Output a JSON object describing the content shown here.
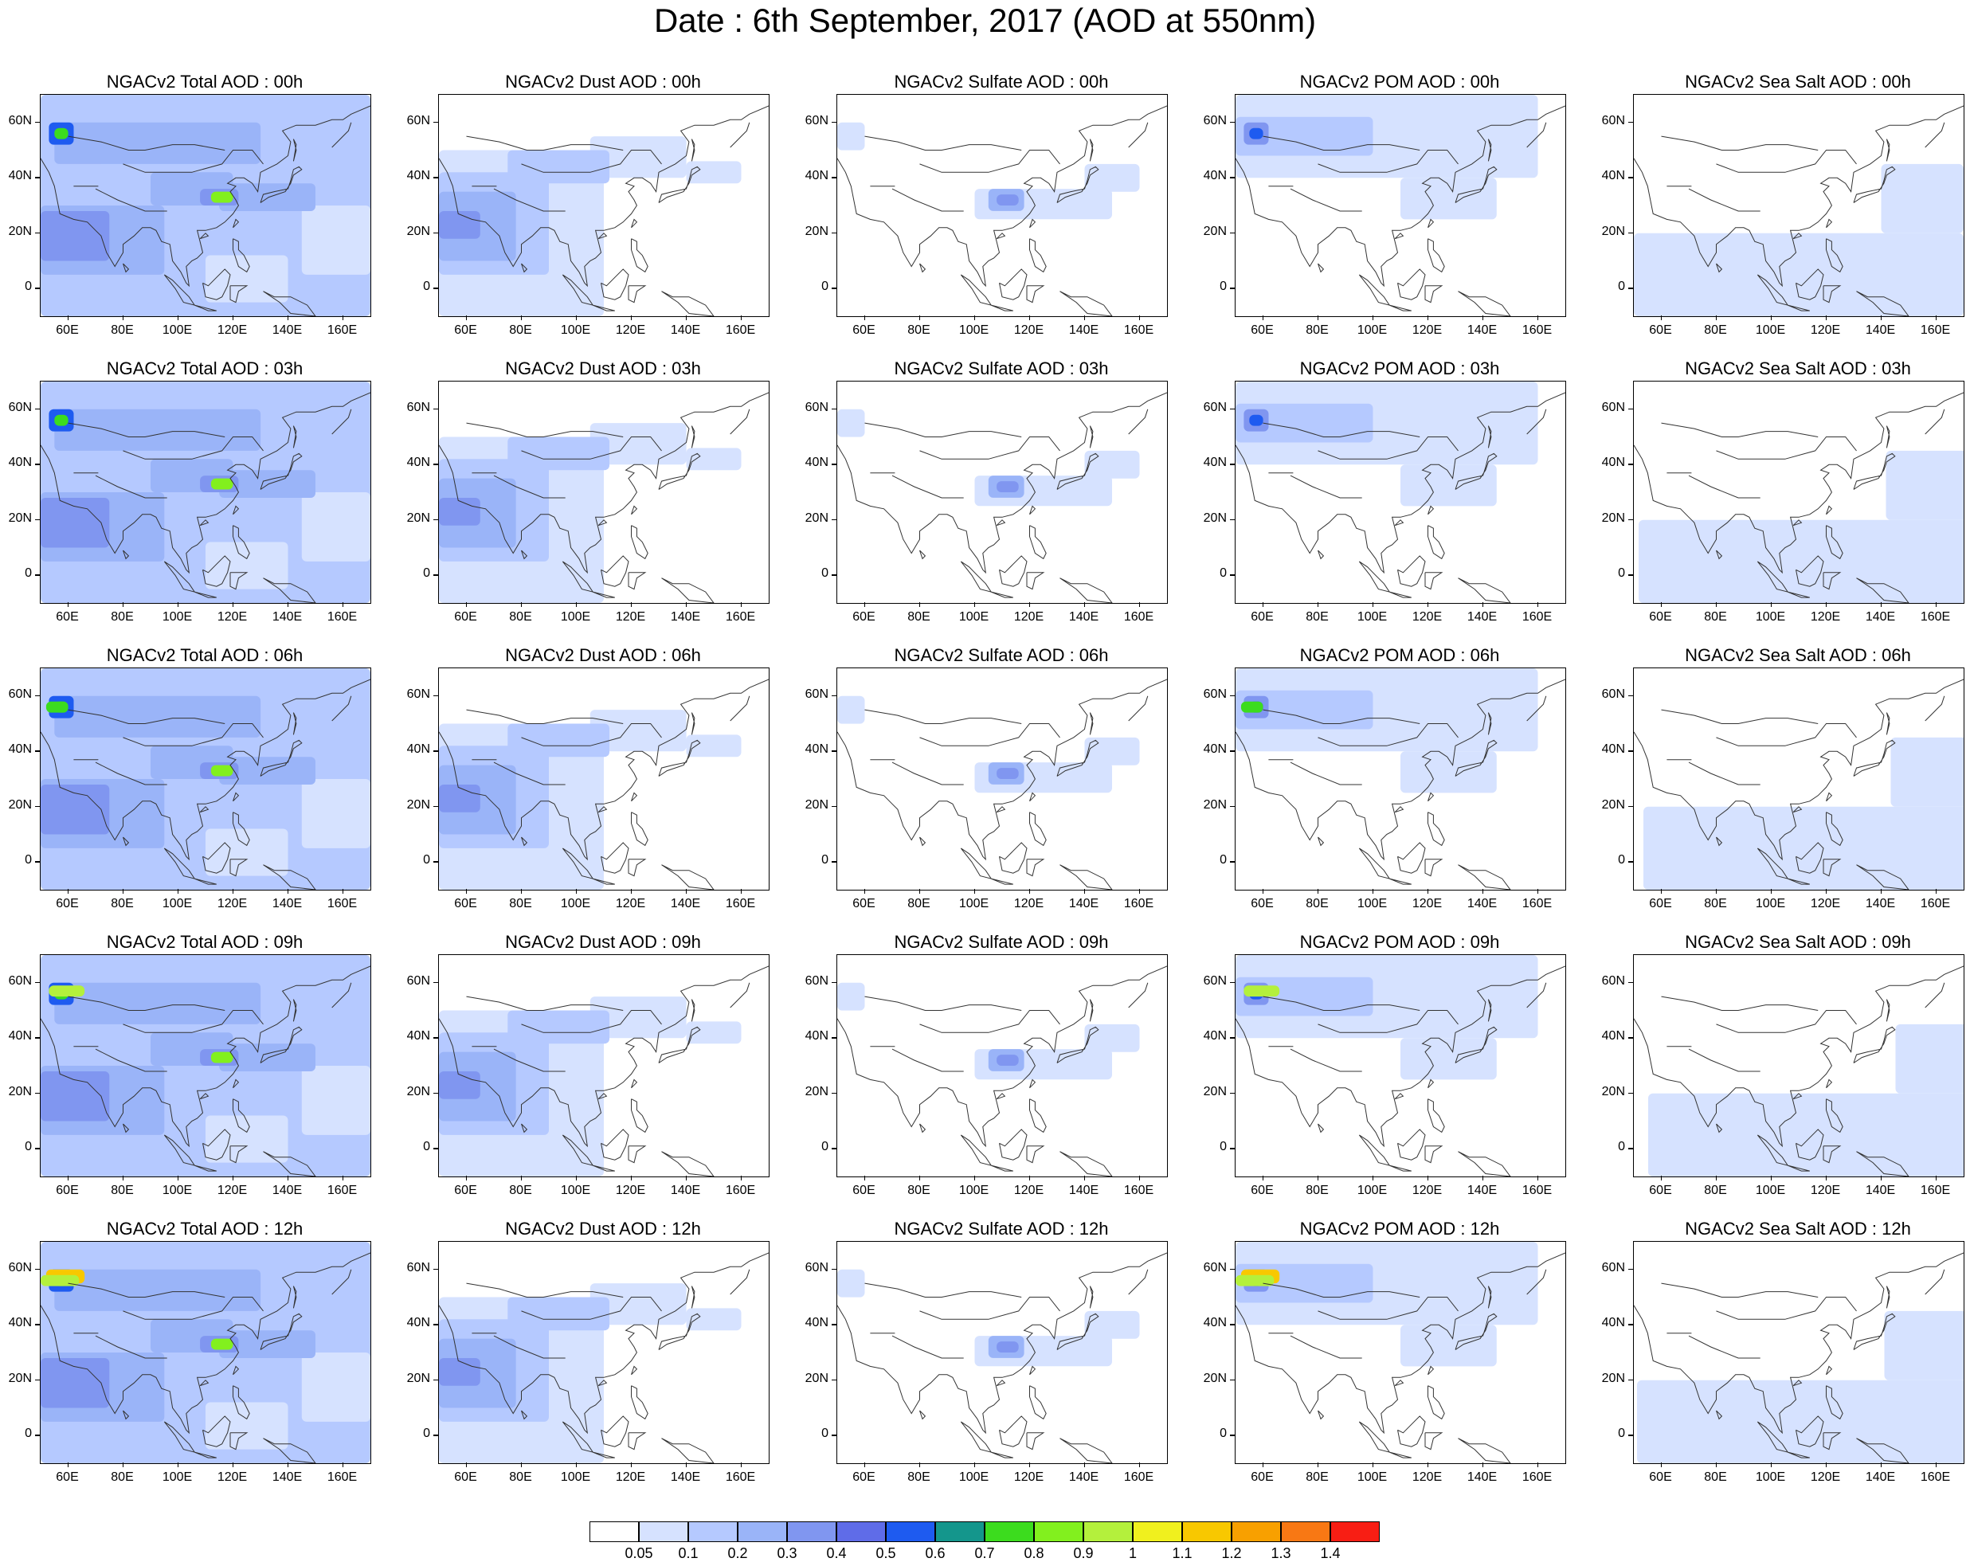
{
  "title": "Date : 6th September, 2017 (AOD at 550nm)",
  "lat_labels": [
    "60N",
    "40N",
    "20N",
    "0"
  ],
  "lon_labels": [
    "60E",
    "80E",
    "100E",
    "120E",
    "140E",
    "160E"
  ],
  "panel_titles": [
    [
      "NGACv2 Total AOD : 00h",
      "NGACv2 Dust AOD : 00h",
      "NGACv2 Sulfate AOD : 00h",
      "NGACv2 POM AOD : 00h",
      "NGACv2 Sea Salt AOD : 00h"
    ],
    [
      "NGACv2 Total AOD : 03h",
      "NGACv2 Dust AOD : 03h",
      "NGACv2 Sulfate AOD : 03h",
      "NGACv2 POM AOD : 03h",
      "NGACv2 Sea Salt AOD : 03h"
    ],
    [
      "NGACv2 Total AOD : 06h",
      "NGACv2 Dust AOD : 06h",
      "NGACv2 Sulfate AOD : 06h",
      "NGACv2 POM AOD : 06h",
      "NGACv2 Sea Salt AOD : 06h"
    ],
    [
      "NGACv2 Total AOD : 09h",
      "NGACv2 Dust AOD : 09h",
      "NGACv2 Sulfate AOD : 09h",
      "NGACv2 POM AOD : 09h",
      "NGACv2 Sea Salt  AOD : 09h"
    ],
    [
      "NGACv2 Total AOD  : 12h",
      "NGACv2 Dust AOD : 12h",
      "NGACv2 Sulfate AOD : 12h",
      "NGACv2 POM  AOD : 12h",
      "NGACv2 Sea Salt  AOD : 12h"
    ]
  ],
  "colorbar": {
    "colors": [
      "#ffffff",
      "#d6e2ff",
      "#b5c9ff",
      "#9ab4f8",
      "#8096f0",
      "#5f6ce8",
      "#1e5bf0",
      "#14968c",
      "#3cdc1e",
      "#82f01e",
      "#b4f03c",
      "#f0f01e",
      "#f8c800",
      "#f8a000",
      "#f87814",
      "#f81e14"
    ],
    "labels": [
      "0.05",
      "0.1",
      "0.2",
      "0.3",
      "0.4",
      "0.5",
      "0.6",
      "0.7",
      "0.8",
      "0.9",
      "1",
      "1.1",
      "1.2",
      "1.3",
      "1.4"
    ]
  },
  "chart_data": {
    "type": "heatmap",
    "title": "Date : 6th September, 2017 (AOD at 550nm)",
    "variable": "AOD at 550nm",
    "columns": [
      "Total",
      "Dust",
      "Sulfate",
      "POM",
      "Sea Salt"
    ],
    "rows": [
      "00h",
      "03h",
      "06h",
      "09h",
      "12h"
    ],
    "lon_range": [
      50,
      170
    ],
    "lat_range": [
      -10,
      70
    ],
    "levels": [
      0.05,
      0.1,
      0.2,
      0.3,
      0.4,
      0.5,
      0.6,
      0.7,
      0.8,
      0.9,
      1,
      1.1,
      1.2,
      1.3,
      1.4
    ]
  }
}
